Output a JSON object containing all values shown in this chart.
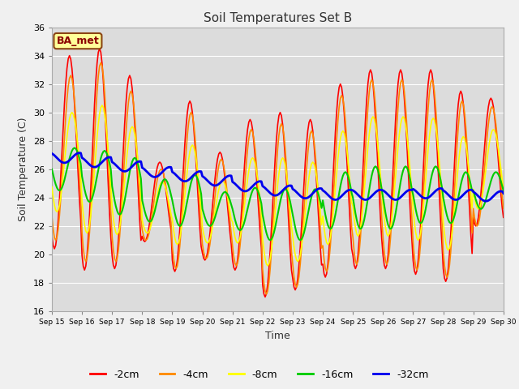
{
  "title": "Soil Temperatures Set B",
  "xlabel": "Time",
  "ylabel": "Soil Temperature (C)",
  "ylim": [
    16,
    36
  ],
  "xlim": [
    0,
    360
  ],
  "fig_bg_color": "#f0f0f0",
  "plot_bg_color": "#dcdcdc",
  "annotation_text": "BA_met",
  "annotation_bg": "#ffff99",
  "annotation_border": "#8B4513",
  "annotation_text_color": "#8B0000",
  "series_colors": {
    "-2cm": "#ff0000",
    "-4cm": "#ff8800",
    "-8cm": "#ffff00",
    "-16cm": "#00cc00",
    "-32cm": "#0000ee"
  },
  "series_lw": {
    "-2cm": 1.2,
    "-4cm": 1.2,
    "-8cm": 1.2,
    "-16cm": 1.5,
    "-32cm": 2.0
  },
  "xtick_positions": [
    0,
    24,
    48,
    72,
    96,
    120,
    144,
    168,
    192,
    216,
    240,
    264,
    288,
    312,
    336,
    360
  ],
  "xtick_labels": [
    "Sep 15",
    "Sep 16",
    "Sep 17",
    "Sep 18",
    "Sep 19",
    "Sep 20",
    "Sep 21",
    "Sep 22",
    "Sep 23",
    "Sep 24",
    "Sep 25",
    "Sep 26",
    "Sep 27",
    "Sep 28",
    "Sep 29",
    "Sep 30"
  ],
  "ytick_positions": [
    16,
    18,
    20,
    22,
    24,
    26,
    28,
    30,
    32,
    34,
    36
  ],
  "grid_color": "#ffffff",
  "grid_lw": 0.8,
  "legend_entries": [
    "-2cm",
    "-4cm",
    "-8cm",
    "-16cm",
    "-32cm"
  ]
}
